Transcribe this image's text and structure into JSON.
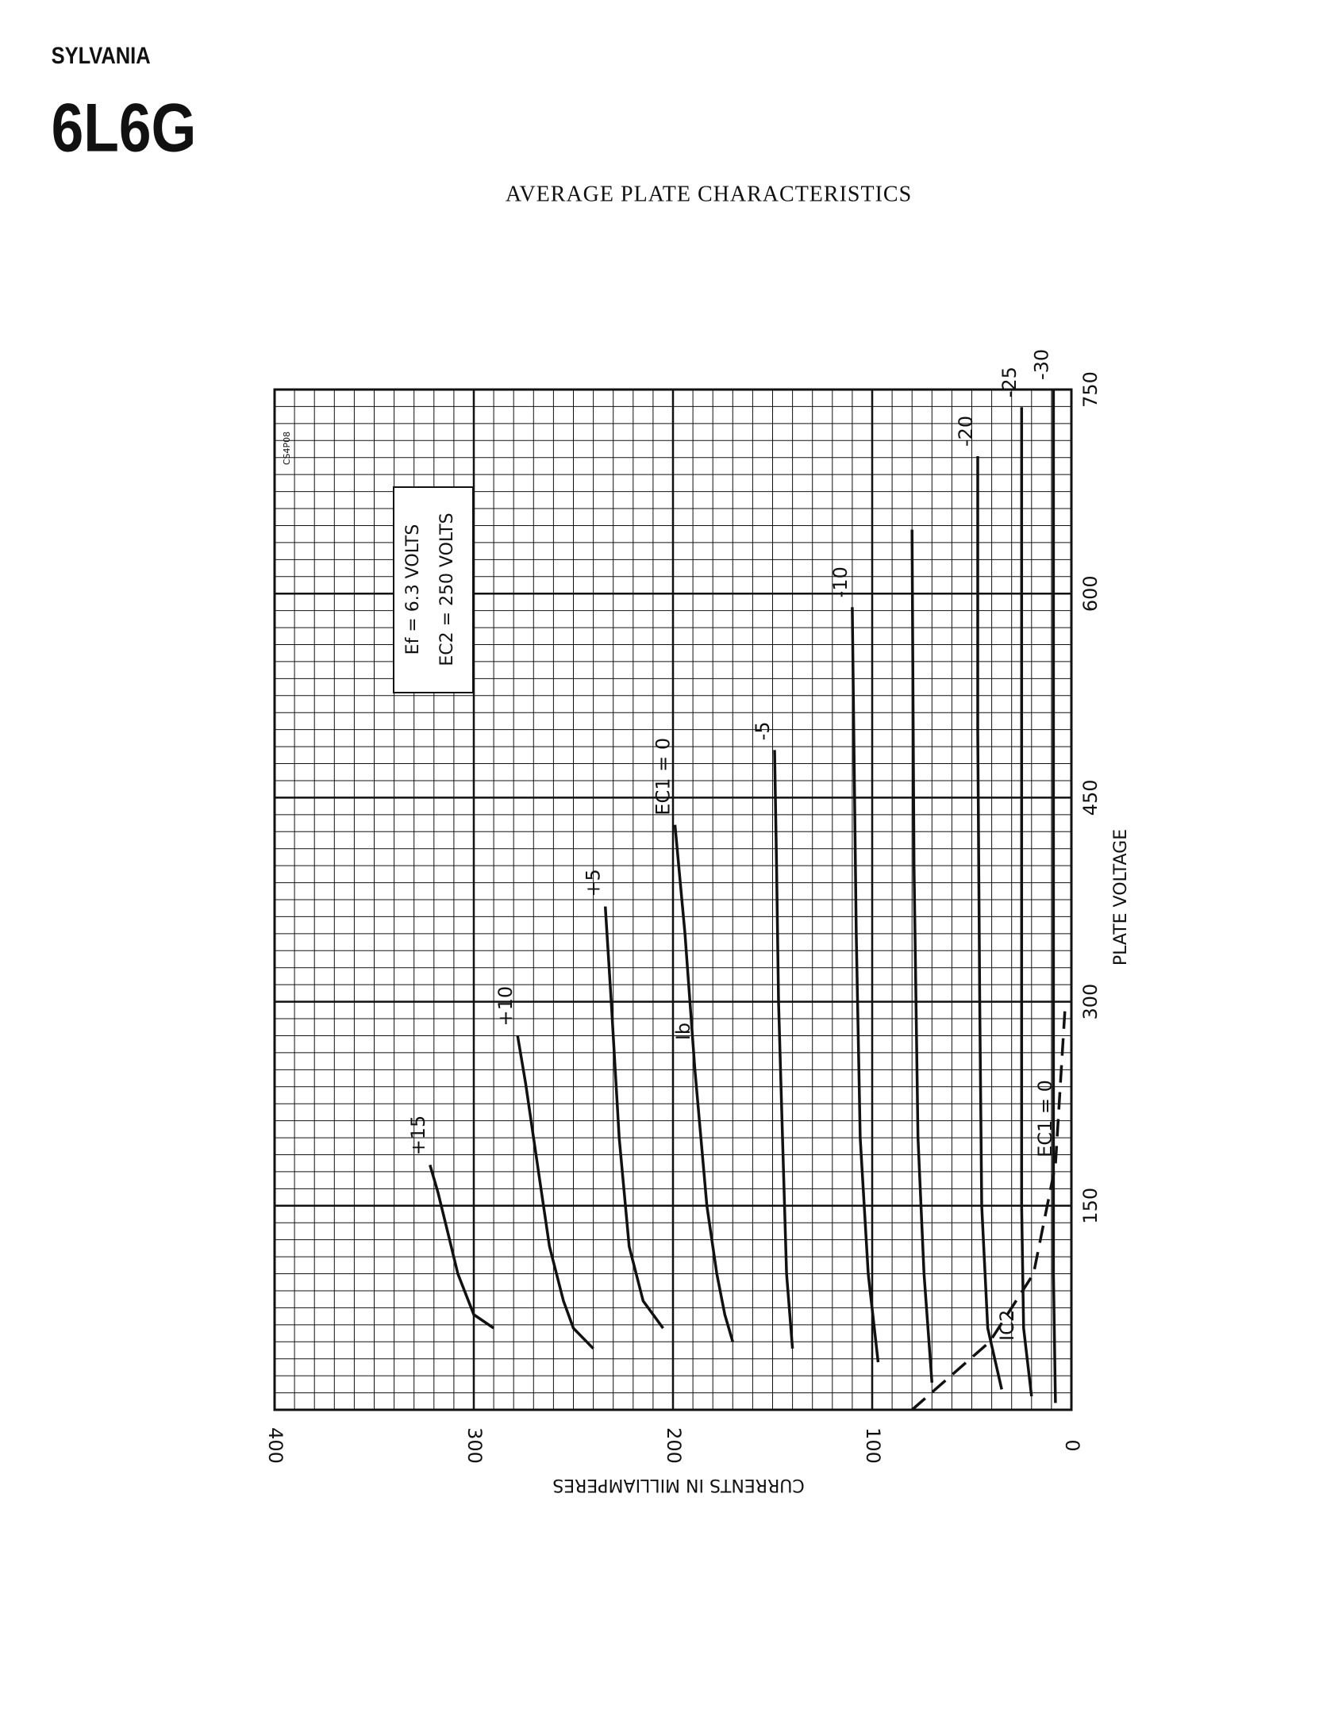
{
  "header": {
    "brand": "SYLVANIA",
    "model": "6L6G"
  },
  "chart_data": {
    "type": "line",
    "title": "AVERAGE PLATE CHARACTERISTICS",
    "x_label": "PLATE VOLTAGE",
    "y_label": "CURRENTS IN MILLIAMPERES",
    "code": "CS4P08",
    "conditions": [
      "Ef = 6.3 VOLTS",
      "EC2 = 250 VOLTS"
    ],
    "annotations": [
      "Ib",
      "EC1 = 0"
    ],
    "xlim": [
      0,
      750
    ],
    "xticks": [
      150,
      300,
      450,
      600,
      750
    ],
    "ylim": [
      0,
      400
    ],
    "yticks": [
      0,
      100,
      200,
      300,
      400
    ],
    "grid": true,
    "series": [
      {
        "name": "+15",
        "color": "#111111",
        "x": [
          60,
          70,
          100,
          130,
          160,
          180
        ],
        "values": [
          290,
          300,
          308,
          313,
          318,
          322
        ]
      },
      {
        "name": "+10",
        "color": "#111111",
        "x": [
          45,
          60,
          80,
          120,
          160,
          200,
          240,
          275
        ],
        "values": [
          240,
          250,
          255,
          262,
          266,
          270,
          274,
          278
        ]
      },
      {
        "name": "+5",
        "color": "#111111",
        "x": [
          60,
          80,
          120,
          200,
          300,
          370
        ],
        "values": [
          205,
          215,
          222,
          227,
          231,
          234
        ]
      },
      {
        "name": "EC1 = 0",
        "color": "#111111",
        "x": [
          50,
          70,
          100,
          150,
          250,
          350,
          430
        ],
        "values": [
          170,
          174,
          178,
          183,
          189,
          194,
          199
        ]
      },
      {
        "name": "-5",
        "color": "#111111",
        "x": [
          45,
          100,
          200,
          300,
          400,
          485
        ],
        "values": [
          140,
          143,
          145,
          147,
          148,
          149
        ]
      },
      {
        "name": "-10",
        "color": "#111111",
        "x": [
          35,
          100,
          200,
          350,
          590
        ],
        "values": [
          97,
          102,
          106,
          108,
          110
        ]
      },
      {
        "color": "#111111",
        "x": [
          20,
          100,
          200,
          400,
          647
        ],
        "values": [
          70,
          74,
          77,
          79,
          80
        ]
      },
      {
        "name": "-20",
        "color": "#111111",
        "x": [
          15,
          60,
          150,
          300,
          500,
          701
        ],
        "values": [
          35,
          42,
          45,
          46,
          47,
          47
        ]
      },
      {
        "name": "-25",
        "color": "#111111",
        "x": [
          10,
          60,
          150,
          400,
          737
        ],
        "values": [
          20,
          24,
          25,
          25,
          25
        ]
      },
      {
        "name": "-30",
        "color": "#111111",
        "x": [
          5,
          100,
          300,
          750
        ],
        "values": [
          8,
          9,
          9,
          9
        ]
      },
      {
        "name": "IC2",
        "color": "#111111",
        "dashed": true,
        "x": [
          0,
          50,
          100,
          180,
          300
        ],
        "values": [
          80,
          41,
          19,
          8,
          3
        ]
      }
    ]
  }
}
